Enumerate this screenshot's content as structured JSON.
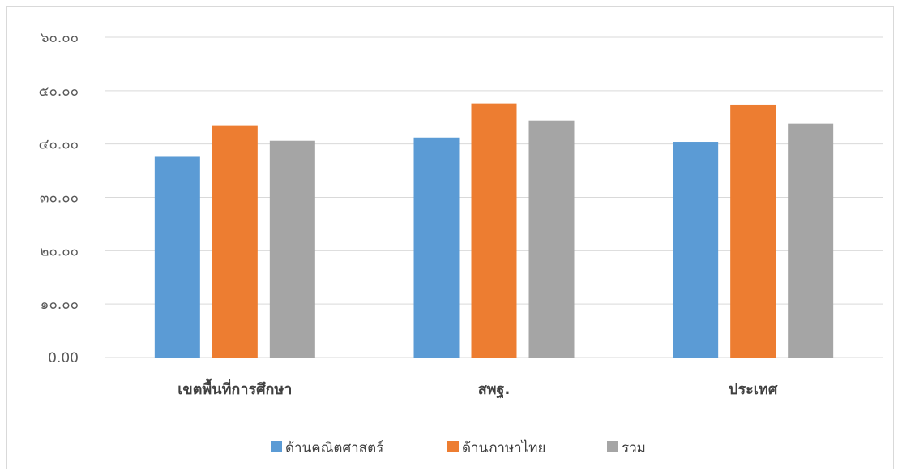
{
  "chart_data": {
    "type": "bar",
    "categories": [
      "เขตพื้นที่การศึกษา",
      "สพฐ.",
      "ประเทศ"
    ],
    "series": [
      {
        "name": "ด้านคณิตศาสตร์",
        "values": [
          37.6,
          41.2,
          40.4
        ],
        "color": "#5B9BD5"
      },
      {
        "name": "ด้านภาษาไทย",
        "values": [
          43.5,
          47.6,
          47.4
        ],
        "color": "#ED7D31"
      },
      {
        "name": "รวม",
        "values": [
          40.6,
          44.4,
          43.8
        ],
        "color": "#A5A5A5"
      }
    ],
    "ylim": [
      0,
      60
    ],
    "yticks": [
      0,
      10,
      20,
      30,
      40,
      50,
      60
    ],
    "ytick_labels": [
      "0.00",
      "๑๐.๐๐",
      "๒๐.๐๐",
      "๓๐.๐๐",
      "๔๐.๐๐",
      "๕๐.๐๐",
      "๖๐.๐๐"
    ],
    "grid": true,
    "legend_position": "bottom",
    "title": "",
    "xlabel": "",
    "ylabel": ""
  }
}
